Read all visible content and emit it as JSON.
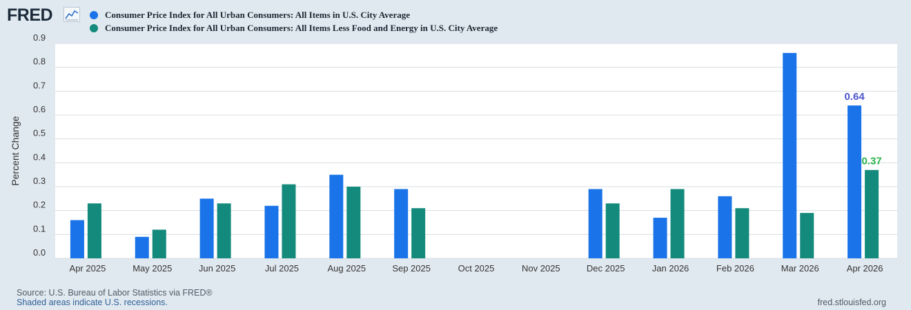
{
  "brand": {
    "logo_text": "FRED",
    "logo_icon": "line-chart-icon"
  },
  "legend": [
    {
      "label": "Consumer Price Index for All Urban Consumers: All Items in U.S. City Average",
      "color": "#1a73e8"
    },
    {
      "label": "Consumer Price Index for All Urban Consumers: All Items Less Food and Energy in U.S. City Average",
      "color": "#138a7b"
    }
  ],
  "chart_data": {
    "type": "bar",
    "ylabel": "Percent Change",
    "ylim": [
      0,
      0.9
    ],
    "yticks": [
      "0.0",
      "0.1",
      "0.2",
      "0.3",
      "0.4",
      "0.5",
      "0.6",
      "0.7",
      "0.8",
      "0.9"
    ],
    "grid": true,
    "categories": [
      "Apr 2025",
      "May 2025",
      "Jun 2025",
      "Jul 2025",
      "Aug 2025",
      "Sep 2025",
      "Oct 2025",
      "Nov 2025",
      "Dec 2025",
      "Jan 2026",
      "Feb 2026",
      "Mar 2026",
      "Apr 2026"
    ],
    "series": [
      {
        "color": "#1a73e8",
        "label_color": "#4a55c9",
        "values": [
          0.16,
          0.09,
          0.25,
          0.22,
          0.35,
          0.29,
          null,
          null,
          0.29,
          0.17,
          0.26,
          0.86,
          0.64
        ],
        "annotation": {
          "index": 12,
          "text": "0.64"
        }
      },
      {
        "color": "#138a7b",
        "label_color": "#2bb34a",
        "values": [
          0.23,
          0.12,
          0.23,
          0.31,
          0.3,
          0.21,
          null,
          null,
          0.23,
          0.29,
          0.21,
          0.19,
          0.37
        ],
        "annotation": {
          "index": 12,
          "text": "0.37"
        }
      }
    ]
  },
  "footer": {
    "source": "Source: U.S. Bureau of Labor Statistics via FRED®",
    "note": "Shaded areas indicate U.S. recessions.",
    "site": "fred.stlouisfed.org"
  }
}
